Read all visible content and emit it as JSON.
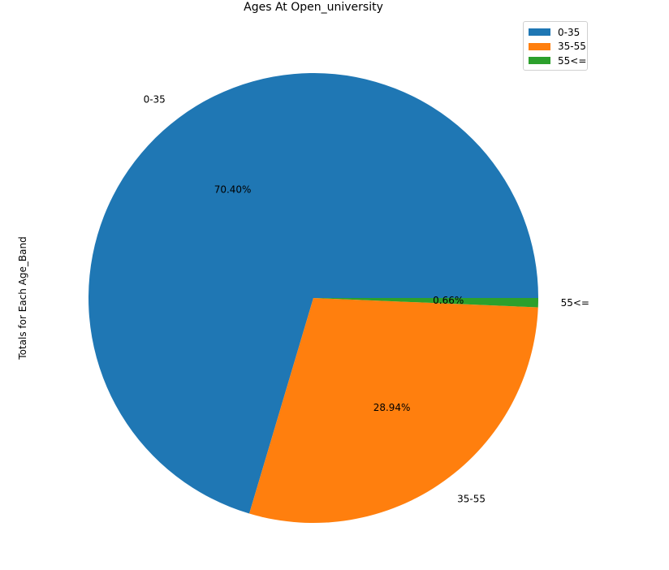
{
  "chart_data": {
    "type": "pie",
    "title": "Ages At Open_university",
    "ylabel": "Totals for Each Age_Band",
    "legend_position": "top-right",
    "slices": [
      {
        "label": "0-35",
        "value": 70.4,
        "pct_label": "70.40%",
        "color": "#1f77b4"
      },
      {
        "label": "35-55",
        "value": 28.94,
        "pct_label": "28.94%",
        "color": "#ff7f0e"
      },
      {
        "label": "55<=",
        "value": 0.66,
        "pct_label": "0.66%",
        "color": "#2ca02c"
      }
    ]
  }
}
